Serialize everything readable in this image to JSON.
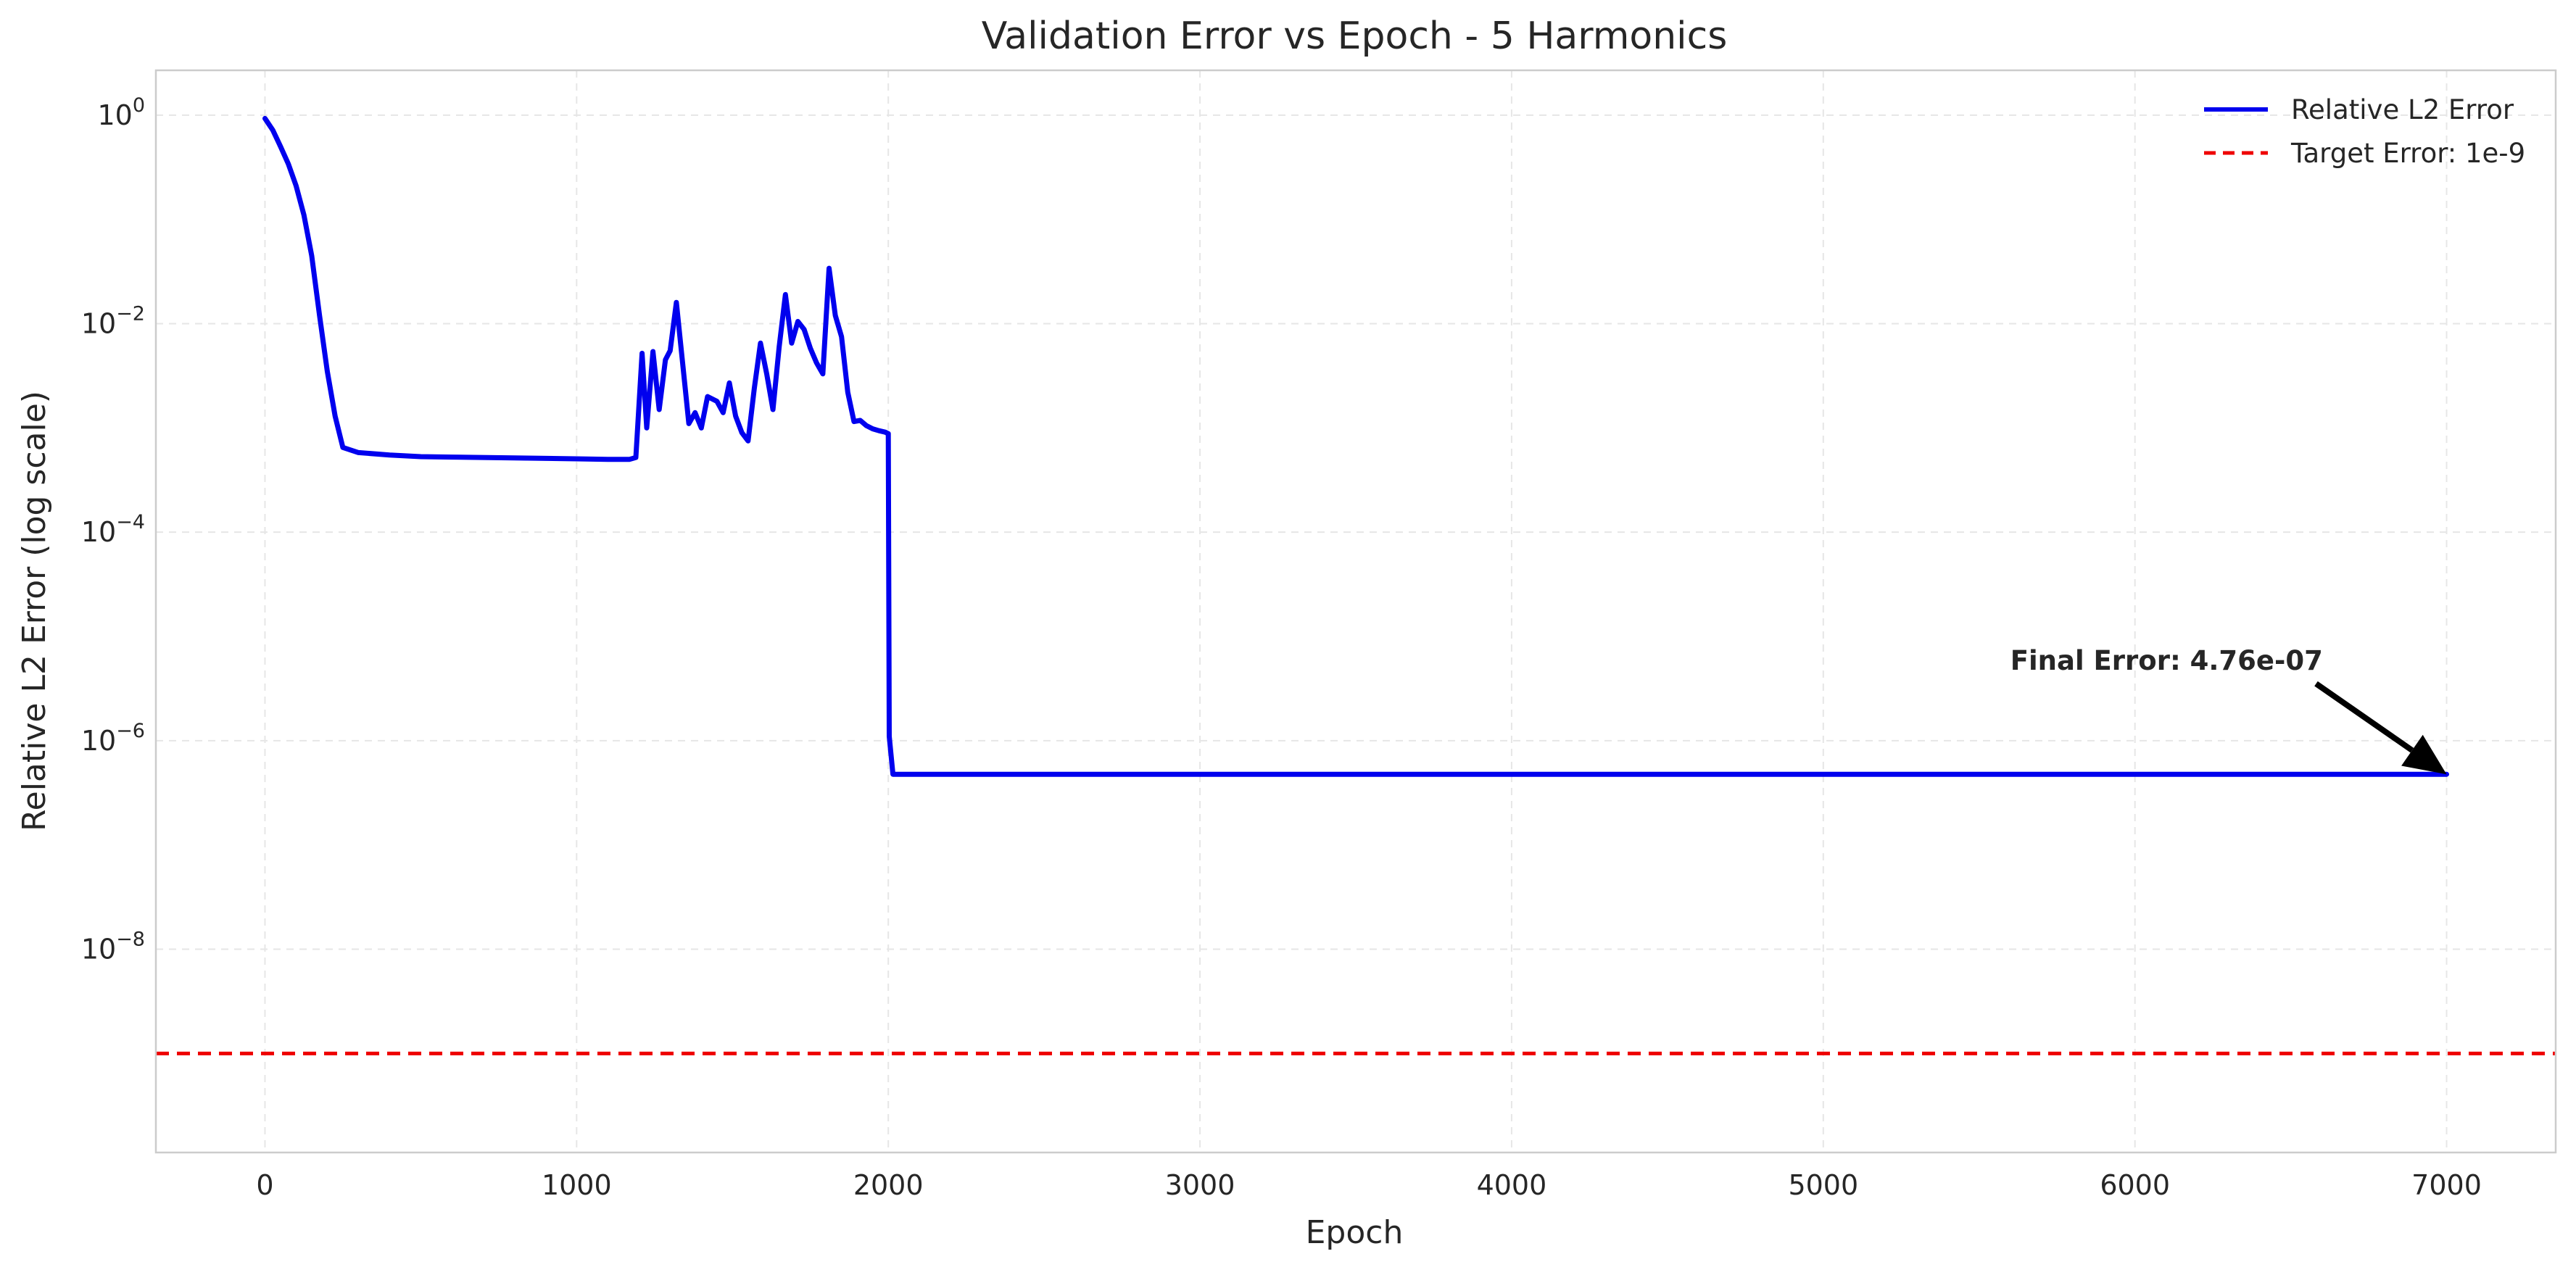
{
  "chart_data": {
    "type": "line",
    "title": "Validation Error vs Epoch - 5 Harmonics",
    "xlabel": "Epoch",
    "ylabel": "Relative L2 Error (log scale)",
    "xlim": [
      -350,
      7350
    ],
    "ylim_log10": [
      -9.95,
      0.43
    ],
    "yscale": "log",
    "grid": true,
    "legend_position": "top-right",
    "x_ticks": [
      0,
      1000,
      2000,
      3000,
      4000,
      5000,
      6000,
      7000
    ],
    "x_tick_labels": [
      "0",
      "1000",
      "2000",
      "3000",
      "4000",
      "5000",
      "6000",
      "7000"
    ],
    "y_ticks": [
      {
        "base": "10",
        "exp": "0",
        "log": 0
      },
      {
        "base": "10",
        "exp": "−2",
        "log": -2
      },
      {
        "base": "10",
        "exp": "−4",
        "log": -4
      },
      {
        "base": "10",
        "exp": "−6",
        "log": -6
      },
      {
        "base": "10",
        "exp": "−8",
        "log": -8
      }
    ],
    "series": [
      {
        "name": "Relative L2 Error",
        "color": "#0000ee",
        "style": "solid",
        "x": [
          0,
          25,
          50,
          75,
          100,
          125,
          150,
          175,
          200,
          225,
          250,
          300,
          400,
          500,
          600,
          800,
          1000,
          1100,
          1170,
          1190,
          1210,
          1225,
          1245,
          1265,
          1285,
          1300,
          1320,
          1340,
          1360,
          1380,
          1400,
          1420,
          1450,
          1470,
          1490,
          1510,
          1530,
          1550,
          1570,
          1590,
          1610,
          1630,
          1650,
          1670,
          1690,
          1710,
          1730,
          1750,
          1770,
          1790,
          1810,
          1830,
          1850,
          1870,
          1890,
          1910,
          1930,
          1950,
          1970,
          1990,
          2000,
          2003,
          2015,
          2100,
          3000,
          4000,
          5000,
          6000,
          7000
        ],
        "y": [
          0.93,
          0.72,
          0.5,
          0.34,
          0.21,
          0.11,
          0.045,
          0.012,
          0.0035,
          0.0013,
          0.00065,
          0.00058,
          0.00055,
          0.00053,
          0.000525,
          0.000515,
          0.000505,
          0.0005,
          0.0005,
          0.00052,
          0.0052,
          0.001,
          0.0054,
          0.0015,
          0.0045,
          0.0055,
          0.016,
          0.0042,
          0.0011,
          0.0014,
          0.001,
          0.002,
          0.0018,
          0.0014,
          0.0027,
          0.0013,
          0.0009,
          0.00075,
          0.0024,
          0.0065,
          0.0033,
          0.0015,
          0.006,
          0.019,
          0.0065,
          0.0105,
          0.0088,
          0.0058,
          0.0042,
          0.0033,
          0.034,
          0.012,
          0.0075,
          0.0022,
          0.00115,
          0.00118,
          0.00105,
          0.00098,
          0.00094,
          0.00091,
          0.00088,
          1.1e-06,
          4.76e-07,
          4.76e-07,
          4.76e-07,
          4.76e-07,
          4.76e-07,
          4.76e-07,
          4.76e-07
        ]
      },
      {
        "name": "Target Error: 1e-9",
        "color": "#ee0000",
        "style": "dashed",
        "y_const": 1e-09
      }
    ],
    "annotation": {
      "text": "Final Error: 4.76e-07",
      "point": [
        7000,
        4.76e-07
      ],
      "text_at": [
        5600,
        4.8e-06
      ]
    }
  }
}
